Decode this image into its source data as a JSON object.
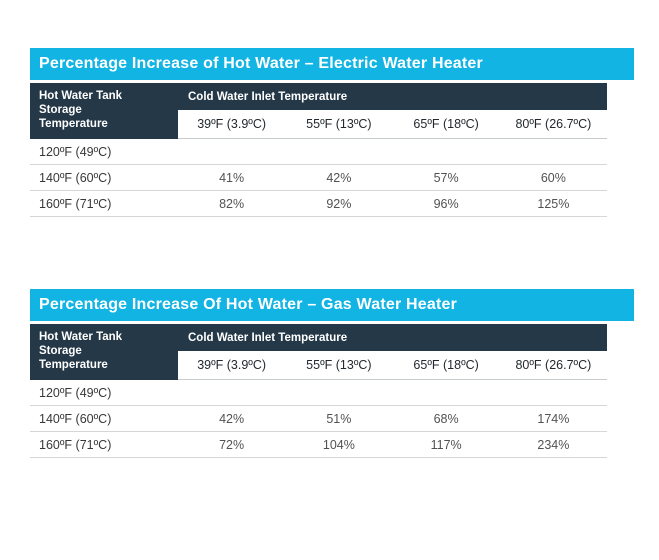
{
  "colors": {
    "page_bg": "#ffffff",
    "title_bar_bg": "#12b4e4",
    "title_text": "#ffffff",
    "header_bg": "#243847",
    "header_text": "#ffffff",
    "col_header_text": "#22292e",
    "row_label_text": "#383838",
    "value_text": "#525252",
    "divider": "#d6d6d6"
  },
  "chart_data": [
    {
      "type": "table",
      "title": "Percentage Increase of Hot Water – Electric Water Heater",
      "corner_header": "Hot Water Tank Storage Temperature",
      "group_header": "Cold Water Inlet Temperature",
      "columns": [
        "39ºF (3.9ºC)",
        "55ºF (13ºC)",
        "65ºF (18ºC)",
        "80ºF (26.7ºC)"
      ],
      "rows": [
        {
          "label": "120ºF (49ºC)",
          "values": [
            "",
            "",
            "",
            ""
          ]
        },
        {
          "label": "140ºF (60ºC)",
          "values": [
            "41%",
            "42%",
            "57%",
            "60%"
          ]
        },
        {
          "label": "160ºF (71ºC)",
          "values": [
            "82%",
            "92%",
            "96%",
            "125%"
          ]
        }
      ]
    },
    {
      "type": "table",
      "title": "Percentage Increase Of Hot Water – Gas Water Heater",
      "corner_header": "Hot Water Tank Storage Temperature",
      "group_header": "Cold Water Inlet Temperature",
      "columns": [
        "39ºF (3.9ºC)",
        "55ºF (13ºC)",
        "65ºF (18ºC)",
        "80ºF (26.7ºC)"
      ],
      "rows": [
        {
          "label": "120ºF (49ºC)",
          "values": [
            "",
            "",
            "",
            ""
          ]
        },
        {
          "label": "140ºF (60ºC)",
          "values": [
            "42%",
            "51%",
            "68%",
            "174%"
          ]
        },
        {
          "label": "160ºF (71ºC)",
          "values": [
            "72%",
            "104%",
            "117%",
            "234%"
          ]
        }
      ]
    }
  ]
}
